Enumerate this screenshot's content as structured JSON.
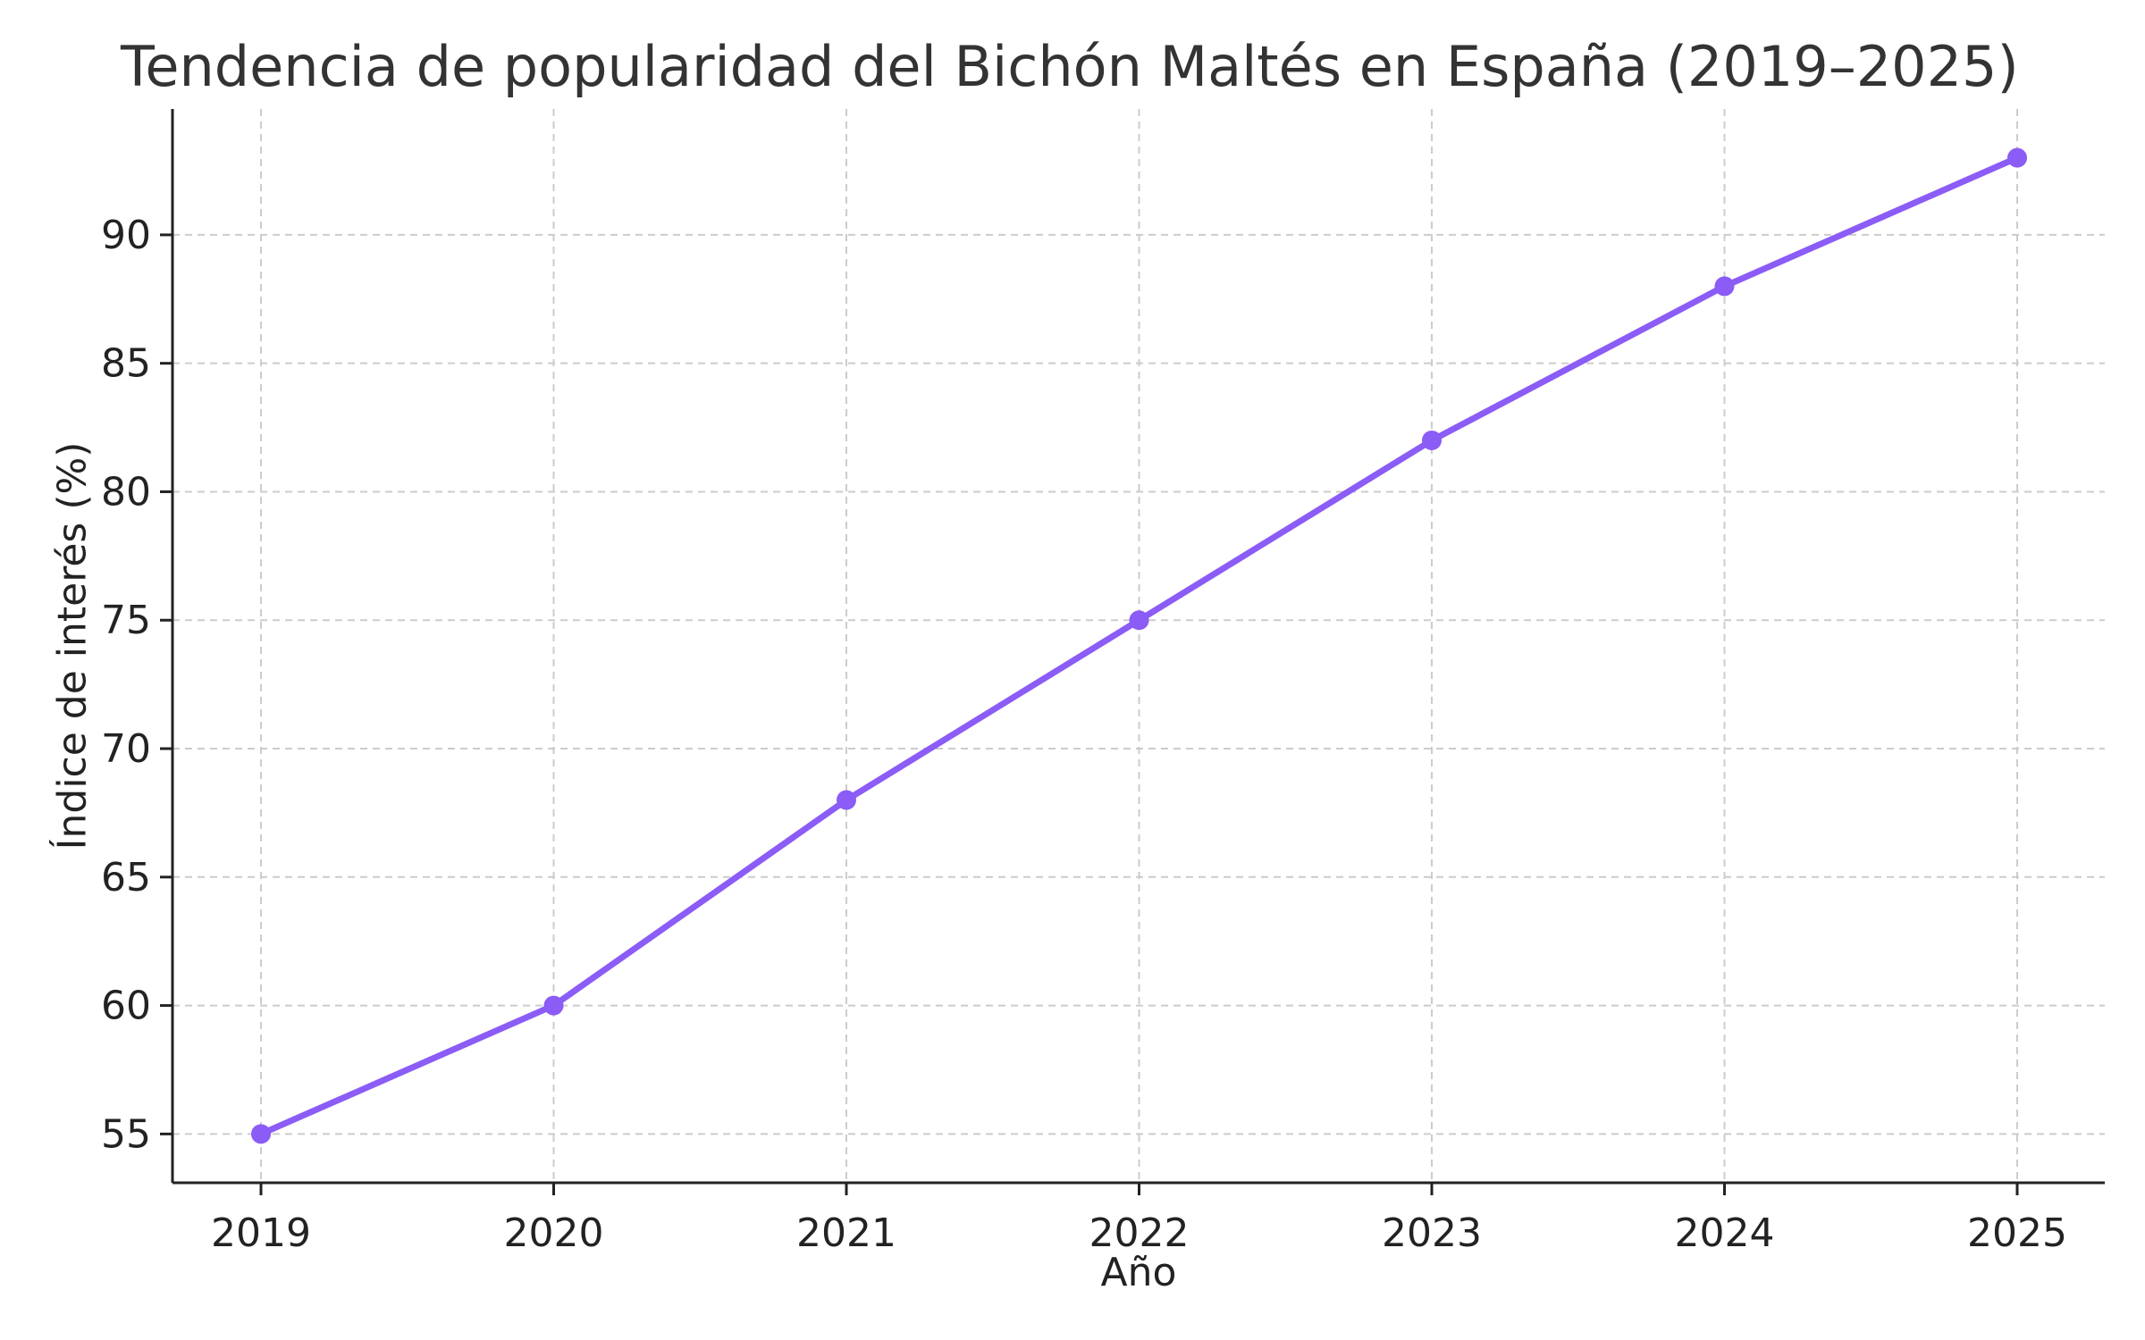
{
  "chart_data": {
    "type": "line",
    "title": "Tendencia de popularidad del Bichón Maltés en España (2019–2025)",
    "xlabel": "Año",
    "ylabel": "Índice de interés (%)",
    "categories": [
      "2019",
      "2020",
      "2021",
      "2022",
      "2023",
      "2024",
      "2025"
    ],
    "series": [
      {
        "values": [
          55,
          60,
          68,
          75,
          82,
          88,
          93
        ],
        "color": "#8B5CF6"
      }
    ],
    "ylim": [
      53.1,
      94.9
    ],
    "yticks": [
      55,
      60,
      65,
      70,
      75,
      80,
      85,
      90
    ],
    "grid": true,
    "legend": "none"
  }
}
